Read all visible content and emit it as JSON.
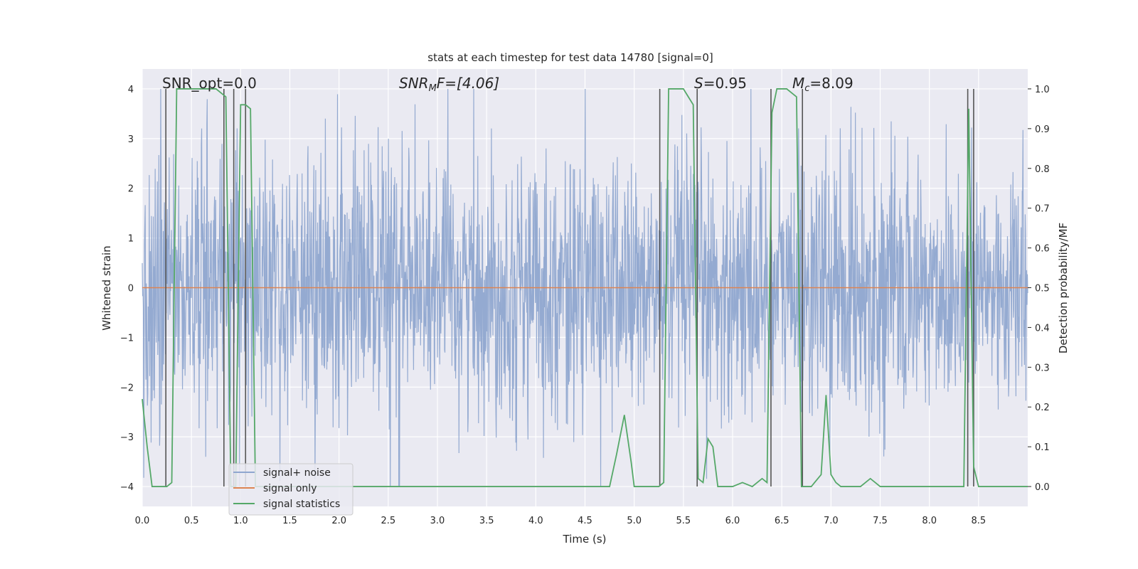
{
  "chart_data": {
    "type": "line",
    "title": "stats at each timestep for test data 14780 [signal=0]",
    "xlabel": "Time (s)",
    "ylabel_left": "Whitened strain",
    "ylabel_right": "Detection probability/MF",
    "xlim": [
      0.0,
      9.0
    ],
    "ylim_left": [
      -4.4,
      4.4
    ],
    "ylim_right": [
      -0.05,
      1.05
    ],
    "x_ticks": [
      "0.0",
      "0.5",
      "1.0",
      "1.5",
      "2.0",
      "2.5",
      "3.0",
      "3.5",
      "4.0",
      "4.5",
      "5.0",
      "5.5",
      "6.0",
      "6.5",
      "7.0",
      "7.5",
      "8.0",
      "8.5"
    ],
    "y_left_ticks": [
      "4",
      "3",
      "2",
      "1",
      "0",
      "−1",
      "−2",
      "−3",
      "−4"
    ],
    "y_right_ticks": [
      "1.0",
      "0.9",
      "0.8",
      "0.7",
      "0.6",
      "0.5",
      "0.4",
      "0.3",
      "0.2",
      "0.1",
      "0.0"
    ],
    "annotations": {
      "snr_opt": "SNR_opt=0.0",
      "snr_mf_label": "SNR",
      "snr_mf_sub": "M",
      "snr_mf_rest": "F=[4.06]",
      "s_label": "S",
      "s_rest": "=0.95",
      "mc_label": "M",
      "mc_sub": "c",
      "mc_rest": "=8.09"
    },
    "legend": [
      "signal+ noise",
      "signal only",
      "signal statistics"
    ],
    "colors": {
      "noise": "#8fa6cf",
      "signal": "#dd8452",
      "stats": "#55a868",
      "vlines": "#555555",
      "plot_bg": "#eaeaf2",
      "grid": "#ffffff"
    },
    "noise_band": {
      "amplitude_std": 0.8,
      "peak_max": 4.0
    },
    "signal_only": {
      "value": 0.0
    },
    "stats_series": {
      "x": [
        0.0,
        0.05,
        0.1,
        0.15,
        0.2,
        0.25,
        0.3,
        0.35,
        0.4,
        0.5,
        0.6,
        0.7,
        0.75,
        0.8,
        0.85,
        0.9,
        0.95,
        1.0,
        1.05,
        1.1,
        1.15,
        1.2,
        1.5,
        2.0,
        3.0,
        4.0,
        4.5,
        4.75,
        4.82,
        4.9,
        4.97,
        5.0,
        5.1,
        5.2,
        5.25,
        5.3,
        5.35,
        5.4,
        5.5,
        5.55,
        5.6,
        5.65,
        5.7,
        5.75,
        5.8,
        5.85,
        5.9,
        5.95,
        6.0,
        6.1,
        6.2,
        6.25,
        6.3,
        6.35,
        6.4,
        6.45,
        6.5,
        6.55,
        6.6,
        6.65,
        6.7,
        6.75,
        6.8,
        6.9,
        6.95,
        7.0,
        7.05,
        7.1,
        7.2,
        7.3,
        7.4,
        7.45,
        7.5,
        7.55,
        7.6,
        8.0,
        8.3,
        8.35,
        8.4,
        8.45,
        8.5,
        8.6,
        8.7,
        9.0
      ],
      "y": [
        0.22,
        0.1,
        0.0,
        0.0,
        0.0,
        0.0,
        0.01,
        1.0,
        1.0,
        1.0,
        1.0,
        1.0,
        1.0,
        0.99,
        0.98,
        0.0,
        0.0,
        0.96,
        0.96,
        0.95,
        0.0,
        0.0,
        0.0,
        0.0,
        0.0,
        0.0,
        0.0,
        0.0,
        0.08,
        0.18,
        0.06,
        0.0,
        0.0,
        0.0,
        0.0,
        0.01,
        1.0,
        1.0,
        1.0,
        0.98,
        0.96,
        0.02,
        0.01,
        0.12,
        0.1,
        0.0,
        0.0,
        0.0,
        0.0,
        0.01,
        0.0,
        0.01,
        0.02,
        0.01,
        0.94,
        1.0,
        1.0,
        1.0,
        0.99,
        0.98,
        0.0,
        0.0,
        0.0,
        0.03,
        0.23,
        0.03,
        0.01,
        0.0,
        0.0,
        0.0,
        0.02,
        0.01,
        0.0,
        0.0,
        0.0,
        0.0,
        0.0,
        0.0,
        0.95,
        0.05,
        0.0,
        0.0,
        0.0,
        0.0
      ]
    },
    "vertical_lines_x": [
      0.24,
      0.83,
      0.93,
      1.05,
      5.26,
      5.64,
      6.39,
      6.71,
      8.39,
      8.45
    ]
  }
}
